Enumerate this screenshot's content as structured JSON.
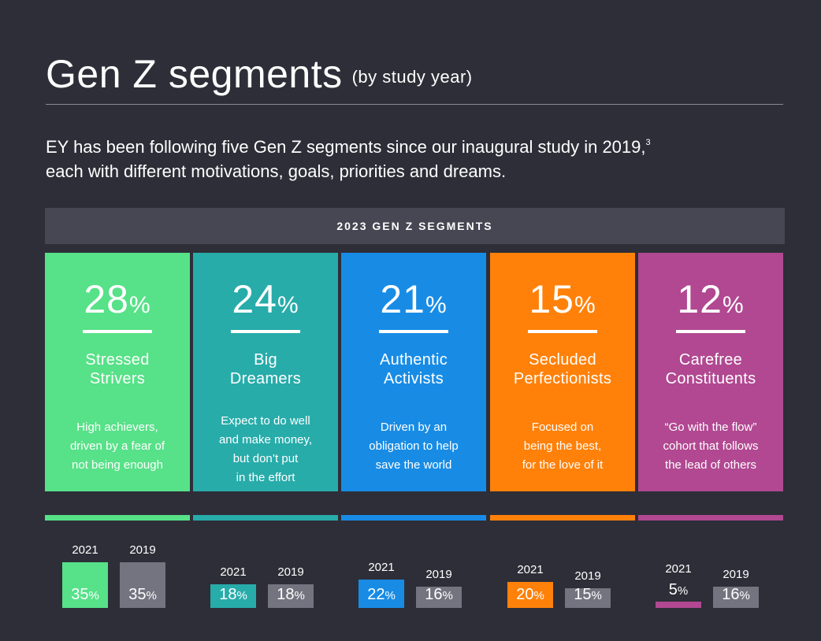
{
  "header": {
    "title": "Gen Z segments",
    "subtitle": "(by study year)",
    "intro_line1": "EY has been following five Gen Z segments since our inaugural study in 2019,",
    "intro_footnote": "3",
    "intro_line2": "each with different motivations, goals, priorities and dreams.",
    "band_label": "2023 GEN Z SEGMENTS"
  },
  "colors": {
    "background": "#2e2e38",
    "band": "#474753",
    "prior_year_bar": "#747480",
    "stressed_strivers": "#57e188",
    "big_dreamers": "#27acaa",
    "authentic_activists": "#188ce5",
    "secluded_perfectionists": "#ff810a",
    "carefree_constituents": "#b14891"
  },
  "chart_data": {
    "type": "bar",
    "title": "Gen Z segments",
    "unit": "%",
    "categories": [
      "Stressed Strivers",
      "Big Dreamers",
      "Authentic Activists",
      "Secluded Perfectionists",
      "Carefree Constituents"
    ],
    "series": [
      {
        "name": "2023",
        "values": [
          28,
          24,
          21,
          15,
          12
        ]
      },
      {
        "name": "2021",
        "values": [
          35,
          18,
          22,
          20,
          5
        ]
      },
      {
        "name": "2019",
        "values": [
          35,
          18,
          16,
          15,
          16
        ]
      }
    ],
    "segments": [
      {
        "pct": "28",
        "name_line1": "Stressed",
        "name_line2": "Strivers",
        "desc": [
          "High achievers,",
          "driven by a fear of",
          "not being enough"
        ],
        "y2021": "35",
        "y2019": "35"
      },
      {
        "pct": "24",
        "name_line1": "Big",
        "name_line2": "Dreamers",
        "desc": [
          "Expect to do well",
          "and make money,",
          "but don’t put",
          "in the effort"
        ],
        "y2021": "18",
        "y2019": "18"
      },
      {
        "pct": "21",
        "name_line1": "Authentic",
        "name_line2": "Activists",
        "desc": [
          "Driven by an",
          "obligation to help",
          "save the world"
        ],
        "y2021": "22",
        "y2019": "16"
      },
      {
        "pct": "15",
        "name_line1": "Secluded",
        "name_line2": "Perfectionists",
        "desc": [
          "Focused on",
          "being the best,",
          "for the love of it"
        ],
        "y2021": "20",
        "y2019": "15"
      },
      {
        "pct": "12",
        "name_line1": "Carefree",
        "name_line2": "Constituents",
        "desc": [
          "“Go with the flow”",
          "cohort that follows",
          "the lead of others"
        ],
        "y2021": "5",
        "y2019": "16"
      }
    ],
    "year_labels": {
      "a": "2021",
      "b": "2019"
    },
    "percent_sign": "%"
  }
}
